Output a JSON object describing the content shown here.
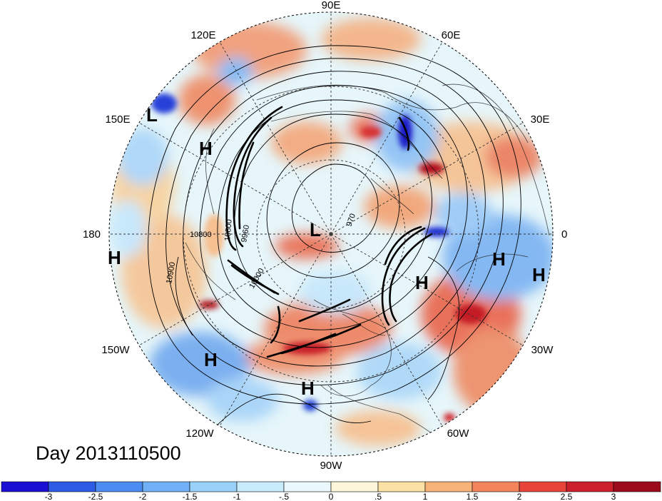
{
  "title": "Day 2013110500",
  "longitude_labels": [
    {
      "id": "lon-90e",
      "text": "90E"
    },
    {
      "id": "lon-60e",
      "text": "60E"
    },
    {
      "id": "lon-30e",
      "text": "30E"
    },
    {
      "id": "lon-0",
      "text": "0"
    },
    {
      "id": "lon-30w",
      "text": "30W"
    },
    {
      "id": "lon-60w",
      "text": "60W"
    },
    {
      "id": "lon-90w",
      "text": "90W"
    },
    {
      "id": "lon-120w",
      "text": "120W"
    },
    {
      "id": "lon-150w",
      "text": "150W"
    },
    {
      "id": "lon-180",
      "text": "180"
    },
    {
      "id": "lon-150e",
      "text": "150E"
    },
    {
      "id": "lon-120e",
      "text": "120E"
    }
  ],
  "pressure_centers": [
    {
      "id": "center-l-east-siberia",
      "text": "L"
    },
    {
      "id": "center-h-siberia",
      "text": "H"
    },
    {
      "id": "center-l-pole",
      "text": "L"
    },
    {
      "id": "center-h-dateline",
      "text": "H"
    },
    {
      "id": "center-h-n-pacific",
      "text": "H"
    },
    {
      "id": "center-h-caribbean",
      "text": "H"
    },
    {
      "id": "center-h-n-atlantic",
      "text": "H"
    },
    {
      "id": "center-h-sahara",
      "text": "H"
    },
    {
      "id": "center-h-w-africa",
      "text": "H"
    }
  ],
  "contour_labels": [
    {
      "id": "contour-label-10800-a",
      "text": "10800"
    },
    {
      "id": "contour-label-10900",
      "text": "10900"
    },
    {
      "id": "contour-label-10800-b",
      "text": "10800"
    },
    {
      "id": "contour-label-9960",
      "text": "9960"
    },
    {
      "id": "contour-label-10000",
      "text": "10000"
    },
    {
      "id": "contour-label-970",
      "text": "970"
    }
  ],
  "colorbar": {
    "colors": [
      "#1c0fd4",
      "#2e5be6",
      "#4a8cf0",
      "#6fb0f6",
      "#98d2fa",
      "#c8ecfb",
      "#eaf8fb",
      "#fdf6da",
      "#fbe2a4",
      "#f7b278",
      "#f2855b",
      "#e8443a",
      "#cc1f2c",
      "#9c0b1c"
    ],
    "tick_labels": [
      "-3",
      "-2.5",
      "-2",
      "-1.5",
      "-1",
      "-.5",
      "0",
      ".5",
      "1",
      "1.5",
      "2",
      "2.5",
      "3"
    ]
  }
}
